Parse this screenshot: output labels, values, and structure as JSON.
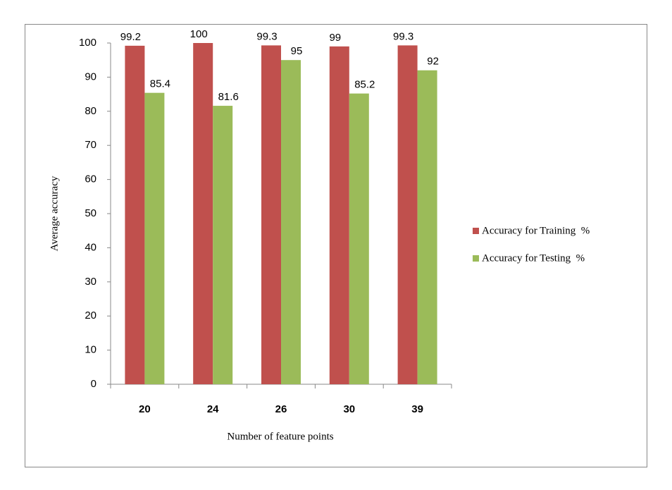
{
  "chart_data": {
    "type": "bar",
    "x_label": "Number of feature points",
    "y_label": "Average accuracy",
    "categories": [
      "20",
      "24",
      "26",
      "30",
      "39"
    ],
    "series": [
      {
        "name": "Accuracy for Training  %",
        "color": "#c0504d",
        "values": [
          99.2,
          100,
          99.3,
          99,
          99.3
        ]
      },
      {
        "name": "Accuracy for Testing  %",
        "color": "#9bbb59",
        "values": [
          85.4,
          81.6,
          95,
          85.2,
          92
        ]
      }
    ],
    "ylim": [
      0,
      100
    ],
    "yticks": [
      0,
      10,
      20,
      30,
      40,
      50,
      60,
      70,
      80,
      90,
      100
    ],
    "grid": false,
    "legend": "right"
  }
}
